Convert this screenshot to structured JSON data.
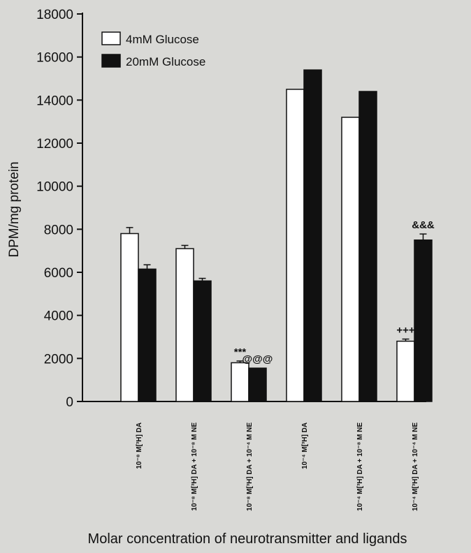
{
  "chart_data": {
    "type": "bar",
    "title": "",
    "xlabel": "Molar concentration of neurotransmitter and ligands",
    "ylabel": "DPM/mg protein",
    "ylim": [
      0,
      18000
    ],
    "yticks": [
      0,
      2000,
      4000,
      6000,
      8000,
      10000,
      12000,
      14000,
      16000,
      18000
    ],
    "grid": false,
    "legend_position": "top-left",
    "categories": [
      "10⁻⁸ M[³H] DA",
      "10⁻⁸ M[³H] DA + 10⁻⁸ M NE",
      "10⁻⁸ M[³H] DA + 10⁻⁴ M NE",
      "10⁻⁴ M[³H] DA",
      "10⁻⁴ M[³H] DA + 10⁻⁸ M NE",
      "10⁻⁴ M[³H] DA + 10⁻⁴ M NE"
    ],
    "series": [
      {
        "name": "4mM Glucose",
        "color": "#ffffff",
        "values": [
          7800,
          7100,
          1800,
          14500,
          13200,
          2800
        ],
        "errors": [
          280,
          150,
          80,
          0,
          0,
          100
        ]
      },
      {
        "name": "20mM Glucose",
        "color": "#111111",
        "values": [
          6150,
          5600,
          1550,
          15400,
          14400,
          7500
        ],
        "errors": [
          200,
          120,
          0,
          0,
          0,
          280
        ]
      }
    ],
    "annotations": [
      {
        "text": "***",
        "category": 2,
        "series": 0
      },
      {
        "text": "@@@",
        "category": 2,
        "series": 1
      },
      {
        "text": "+++",
        "category": 5,
        "series": 0
      },
      {
        "text": "&&&",
        "category": 5,
        "series": 1
      }
    ]
  }
}
